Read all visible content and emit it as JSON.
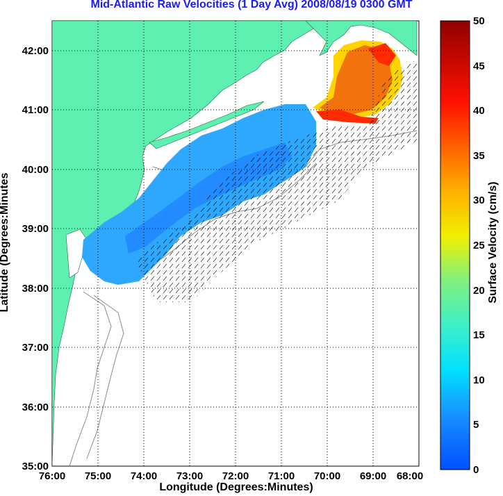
{
  "title": "Mid-Atlantic Raw Velocities (1 Day Avg) 2008/08/19 0300 GMT",
  "xlabel": "Longitude (Degrees:Minutes)",
  "ylabel": "Latitude (Degrees:Minutes",
  "colorbar_label": "Surface Velocity (cm/s)",
  "x_ticks": [
    "76:00",
    "75:00",
    "74:00",
    "73:00",
    "72:00",
    "71:00",
    "70:00",
    "69:00",
    "68:00"
  ],
  "y_ticks": [
    "42:00",
    "41:00",
    "40:00",
    "39:00",
    "38:00",
    "37:00",
    "36:00",
    "35:00"
  ],
  "colorbar_ticks": [
    "50",
    "45",
    "40",
    "35",
    "30",
    "25",
    "20",
    "15",
    "10",
    "5",
    "0"
  ],
  "colors": {
    "land": "#5ef0b0",
    "title": "#1a1aff",
    "field_low": "#1e7fff",
    "field_mid": "#35c4ff",
    "field_high": "#ff2a00",
    "contour": "#8a8a8a"
  },
  "chart_data": {
    "type": "heatmap",
    "title": "Mid-Atlantic Raw Velocities (1 Day Avg) 2008/08/19 0300 GMT",
    "xlabel": "Longitude (Degrees:Minutes)",
    "ylabel": "Latitude (Degrees:Minutes",
    "xlim": [
      "76:00 W",
      "68:00 W"
    ],
    "ylim": [
      "35:00 N",
      "42:30 N"
    ],
    "color_scale": {
      "label": "Surface Velocity (cm/s)",
      "min": 0,
      "max": 50,
      "colormap": "jet"
    },
    "grid": true
  }
}
